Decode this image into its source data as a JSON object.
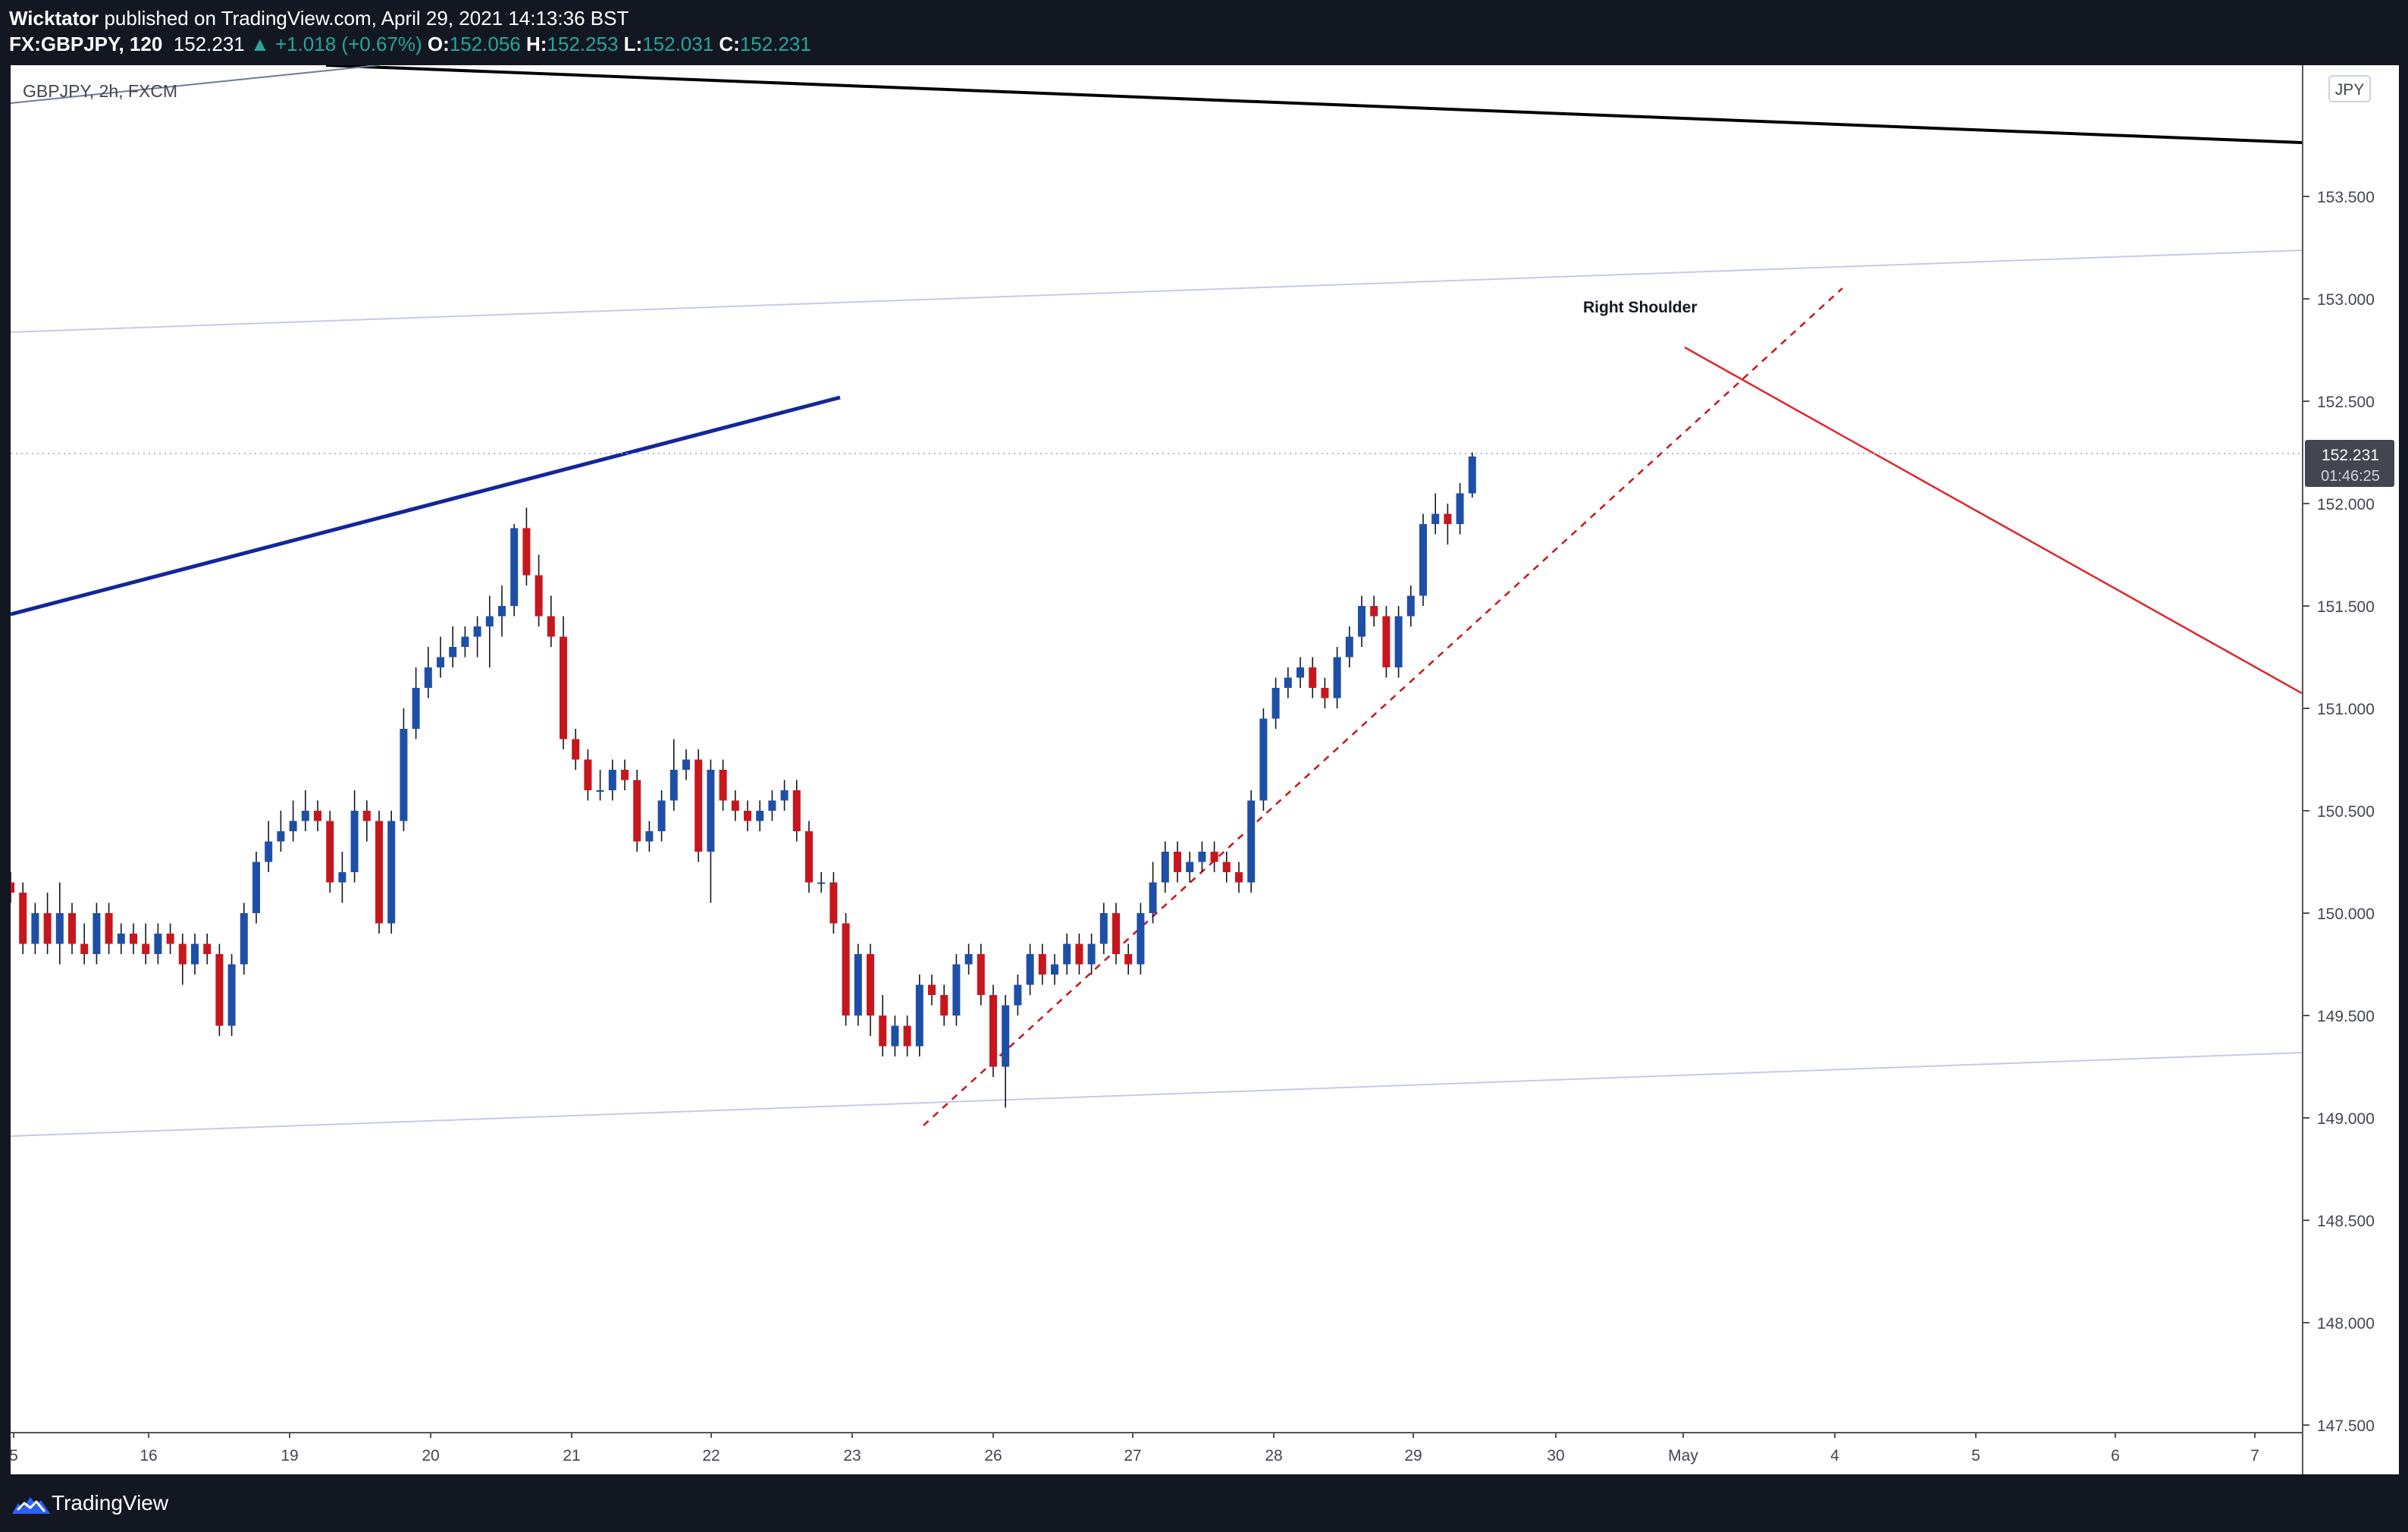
{
  "header": {
    "author": "Wicktator",
    "published": " published on TradingView.com, April 29, 2021 14:13:36 BST",
    "symbol": "FX:GBPJPY, 120",
    "last": "152.231",
    "change": "▲ +1.018 (+0.67%)",
    "o_label": "O:",
    "o_value": "152.056",
    "h_label": "H:",
    "h_value": "152.253",
    "l_label": "L:",
    "l_value": "152.031",
    "c_label": "C:",
    "c_value": "152.231"
  },
  "chart_title": "GBPJPY, 2h, FXCM",
  "currency_badge": "JPY",
  "price_tag": {
    "price": "152.231",
    "countdown": "01:46:25"
  },
  "annotation": "Right Shoulder",
  "footer": {
    "brand": "TradingView"
  },
  "colors": {
    "up": "#1e4fa8",
    "down": "#c8161d",
    "trendline": "#13279a",
    "target": "#e0262a",
    "channel": "#c5cbe6",
    "header_bg": "#131722"
  },
  "chart_data": {
    "type": "candlestick",
    "symbol": "GBPJPY",
    "interval": "2h",
    "ylim": [
      147.5,
      154.0
    ],
    "y_ticks": [
      "147.500",
      "148.000",
      "148.500",
      "149.000",
      "149.500",
      "150.000",
      "150.500",
      "151.000",
      "151.500",
      "152.000",
      "152.500",
      "153.000",
      "153.500"
    ],
    "x_ticks": [
      "5",
      "16",
      "19",
      "20",
      "21",
      "22",
      "23",
      "26",
      "27",
      "28",
      "29",
      "30",
      "May",
      "4",
      "5",
      "6",
      "7"
    ],
    "candles": [
      [
        150.15,
        150.1,
        150.2,
        150.05
      ],
      [
        150.1,
        149.85,
        150.15,
        149.8
      ],
      [
        149.85,
        150.0,
        150.05,
        149.8
      ],
      [
        150.0,
        149.85,
        150.1,
        149.8
      ],
      [
        149.85,
        150.0,
        150.15,
        149.75
      ],
      [
        150.0,
        149.85,
        150.05,
        149.8
      ],
      [
        149.85,
        149.8,
        149.95,
        149.75
      ],
      [
        149.8,
        150.0,
        150.05,
        149.75
      ],
      [
        150.0,
        149.85,
        150.05,
        149.8
      ],
      [
        149.85,
        149.9,
        149.95,
        149.8
      ],
      [
        149.9,
        149.85,
        149.95,
        149.8
      ],
      [
        149.85,
        149.8,
        149.95,
        149.75
      ],
      [
        149.8,
        149.9,
        149.95,
        149.75
      ],
      [
        149.9,
        149.85,
        149.95,
        149.8
      ],
      [
        149.85,
        149.75,
        149.9,
        149.65
      ],
      [
        149.75,
        149.85,
        149.9,
        149.7
      ],
      [
        149.85,
        149.8,
        149.9,
        149.75
      ],
      [
        149.8,
        149.45,
        149.85,
        149.4
      ],
      [
        149.45,
        149.75,
        149.8,
        149.4
      ],
      [
        149.75,
        150.0,
        150.05,
        149.7
      ],
      [
        150.0,
        150.25,
        150.3,
        149.95
      ],
      [
        150.25,
        150.35,
        150.45,
        150.2
      ],
      [
        150.35,
        150.4,
        150.5,
        150.3
      ],
      [
        150.4,
        150.45,
        150.55,
        150.35
      ],
      [
        150.45,
        150.5,
        150.6,
        150.4
      ],
      [
        150.5,
        150.45,
        150.55,
        150.4
      ],
      [
        150.45,
        150.15,
        150.5,
        150.1
      ],
      [
        150.15,
        150.2,
        150.3,
        150.05
      ],
      [
        150.2,
        150.5,
        150.6,
        150.15
      ],
      [
        150.5,
        150.45,
        150.55,
        150.35
      ],
      [
        150.45,
        149.95,
        150.5,
        149.9
      ],
      [
        149.95,
        150.45,
        150.5,
        149.9
      ],
      [
        150.45,
        150.9,
        151.0,
        150.4
      ],
      [
        150.9,
        151.1,
        151.2,
        150.85
      ],
      [
        151.1,
        151.2,
        151.3,
        151.05
      ],
      [
        151.2,
        151.25,
        151.35,
        151.15
      ],
      [
        151.25,
        151.3,
        151.4,
        151.2
      ],
      [
        151.3,
        151.35,
        151.4,
        151.25
      ],
      [
        151.35,
        151.4,
        151.45,
        151.25
      ],
      [
        151.4,
        151.45,
        151.55,
        151.2
      ],
      [
        151.45,
        151.5,
        151.6,
        151.35
      ],
      [
        151.5,
        151.88,
        151.9,
        151.45
      ],
      [
        151.88,
        151.65,
        151.98,
        151.6
      ],
      [
        151.65,
        151.45,
        151.75,
        151.4
      ],
      [
        151.45,
        151.35,
        151.55,
        151.3
      ],
      [
        151.35,
        150.85,
        151.45,
        150.8
      ],
      [
        150.85,
        150.75,
        150.9,
        150.7
      ],
      [
        150.75,
        150.6,
        150.8,
        150.55
      ],
      [
        150.6,
        150.6,
        150.7,
        150.55
      ],
      [
        150.6,
        150.7,
        150.75,
        150.55
      ],
      [
        150.7,
        150.65,
        150.75,
        150.6
      ],
      [
        150.65,
        150.35,
        150.7,
        150.3
      ],
      [
        150.35,
        150.4,
        150.45,
        150.3
      ],
      [
        150.4,
        150.55,
        150.6,
        150.35
      ],
      [
        150.55,
        150.7,
        150.85,
        150.5
      ],
      [
        150.7,
        150.75,
        150.8,
        150.65
      ],
      [
        150.75,
        150.3,
        150.8,
        150.25
      ],
      [
        150.3,
        150.7,
        150.75,
        150.05
      ],
      [
        150.7,
        150.55,
        150.75,
        150.5
      ],
      [
        150.55,
        150.5,
        150.6,
        150.45
      ],
      [
        150.5,
        150.45,
        150.55,
        150.4
      ],
      [
        150.45,
        150.5,
        150.55,
        150.4
      ],
      [
        150.5,
        150.55,
        150.6,
        150.45
      ],
      [
        150.55,
        150.6,
        150.65,
        150.5
      ],
      [
        150.6,
        150.4,
        150.65,
        150.35
      ],
      [
        150.4,
        150.15,
        150.45,
        150.1
      ],
      [
        150.15,
        150.15,
        150.2,
        150.1
      ],
      [
        150.15,
        149.95,
        150.2,
        149.9
      ],
      [
        149.95,
        149.5,
        150.0,
        149.45
      ],
      [
        149.5,
        149.8,
        149.85,
        149.45
      ],
      [
        149.8,
        149.5,
        149.85,
        149.4
      ],
      [
        149.5,
        149.35,
        149.6,
        149.3
      ],
      [
        149.35,
        149.45,
        149.5,
        149.3
      ],
      [
        149.45,
        149.35,
        149.5,
        149.3
      ],
      [
        149.35,
        149.65,
        149.7,
        149.3
      ],
      [
        149.65,
        149.6,
        149.7,
        149.55
      ],
      [
        149.6,
        149.5,
        149.65,
        149.45
      ],
      [
        149.5,
        149.75,
        149.8,
        149.45
      ],
      [
        149.75,
        149.8,
        149.85,
        149.7
      ],
      [
        149.8,
        149.6,
        149.85,
        149.55
      ],
      [
        149.6,
        149.25,
        149.65,
        149.2
      ],
      [
        149.25,
        149.55,
        149.6,
        149.05
      ],
      [
        149.55,
        149.65,
        149.7,
        149.5
      ],
      [
        149.65,
        149.8,
        149.85,
        149.6
      ],
      [
        149.8,
        149.7,
        149.85,
        149.65
      ],
      [
        149.7,
        149.75,
        149.8,
        149.65
      ],
      [
        149.75,
        149.85,
        149.9,
        149.7
      ],
      [
        149.85,
        149.75,
        149.9,
        149.7
      ],
      [
        149.75,
        149.85,
        149.9,
        149.7
      ],
      [
        149.85,
        150.0,
        150.05,
        149.8
      ],
      [
        150.0,
        149.8,
        150.05,
        149.75
      ],
      [
        149.8,
        149.75,
        149.85,
        149.7
      ],
      [
        149.75,
        150.0,
        150.05,
        149.7
      ],
      [
        150.0,
        150.15,
        150.25,
        149.95
      ],
      [
        150.15,
        150.3,
        150.35,
        150.1
      ],
      [
        150.3,
        150.2,
        150.35,
        150.15
      ],
      [
        150.2,
        150.25,
        150.3,
        150.15
      ],
      [
        150.25,
        150.3,
        150.35,
        150.2
      ],
      [
        150.3,
        150.25,
        150.35,
        150.2
      ],
      [
        150.25,
        150.2,
        150.3,
        150.15
      ],
      [
        150.2,
        150.15,
        150.25,
        150.1
      ],
      [
        150.15,
        150.55,
        150.6,
        150.1
      ],
      [
        150.55,
        150.95,
        151.0,
        150.5
      ],
      [
        150.95,
        151.1,
        151.15,
        150.9
      ],
      [
        151.1,
        151.15,
        151.2,
        151.05
      ],
      [
        151.15,
        151.2,
        151.25,
        151.1
      ],
      [
        151.2,
        151.1,
        151.25,
        151.05
      ],
      [
        151.1,
        151.05,
        151.15,
        151.0
      ],
      [
        151.05,
        151.25,
        151.3,
        151.0
      ],
      [
        151.25,
        151.35,
        151.4,
        151.2
      ],
      [
        151.35,
        151.5,
        151.55,
        151.3
      ],
      [
        151.5,
        151.45,
        151.55,
        151.4
      ],
      [
        151.45,
        151.2,
        151.5,
        151.15
      ],
      [
        151.2,
        151.45,
        151.5,
        151.15
      ],
      [
        151.45,
        151.55,
        151.6,
        151.4
      ],
      [
        151.55,
        151.9,
        151.95,
        151.5
      ],
      [
        151.9,
        151.95,
        152.05,
        151.85
      ],
      [
        151.95,
        151.9,
        152.0,
        151.8
      ],
      [
        151.9,
        152.05,
        152.1,
        151.85
      ],
      [
        152.05,
        152.23,
        152.25,
        152.03
      ]
    ]
  }
}
